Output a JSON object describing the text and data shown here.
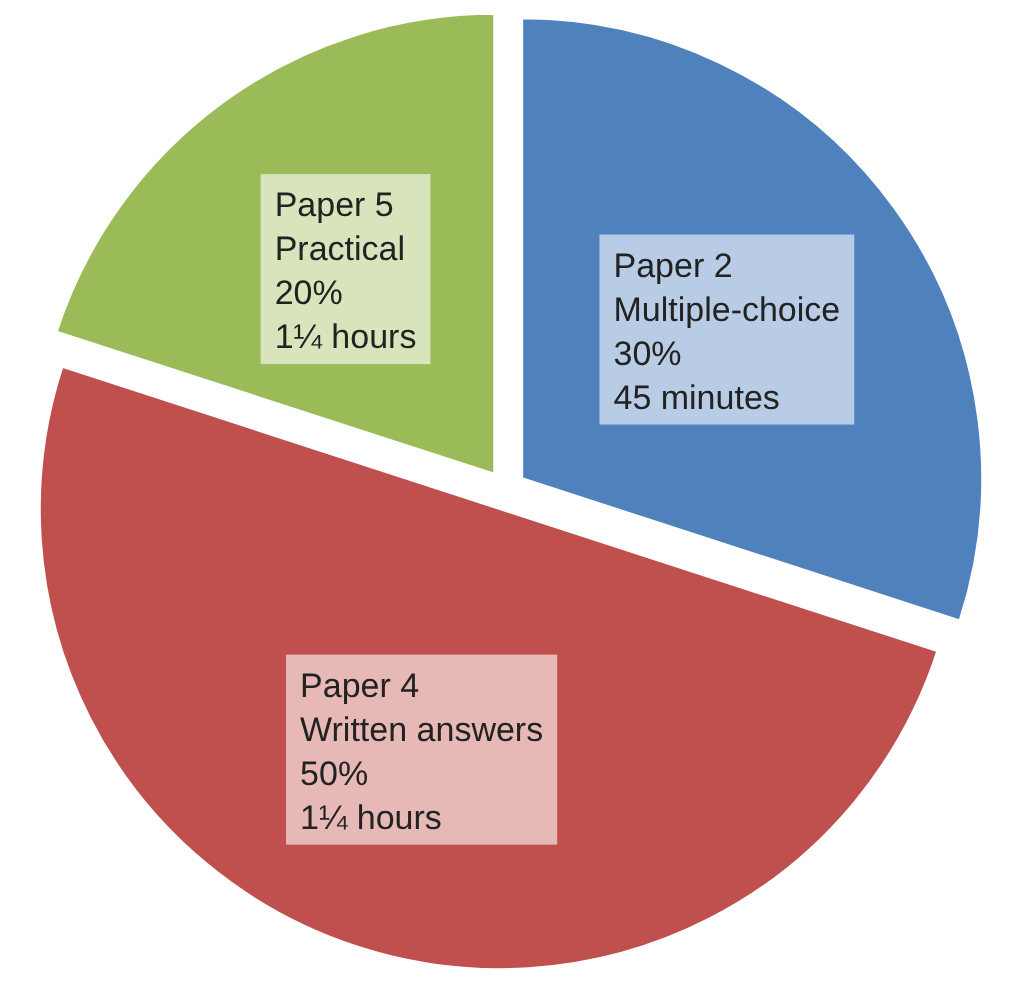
{
  "chart_data": {
    "type": "pie",
    "categories": [
      "Paper 2\nMultiple-choice",
      "Paper 4\nWritten answers",
      "Paper 5\nPractical"
    ],
    "values": [
      30,
      50,
      20
    ],
    "colors": [
      "#4f81bd",
      "#c0504d",
      "#9bbb59"
    ],
    "value_labels": [
      "30%",
      "50%",
      "20%"
    ],
    "annotations": [
      {
        "text": "45 minutes",
        "x": "Paper 2\nMultiple-choice"
      },
      {
        "text": "1¼ hours",
        "x": "Paper 4\nWritten answers"
      },
      {
        "text": "1¼ hours",
        "x": "Paper 5\nPractical"
      }
    ]
  }
}
